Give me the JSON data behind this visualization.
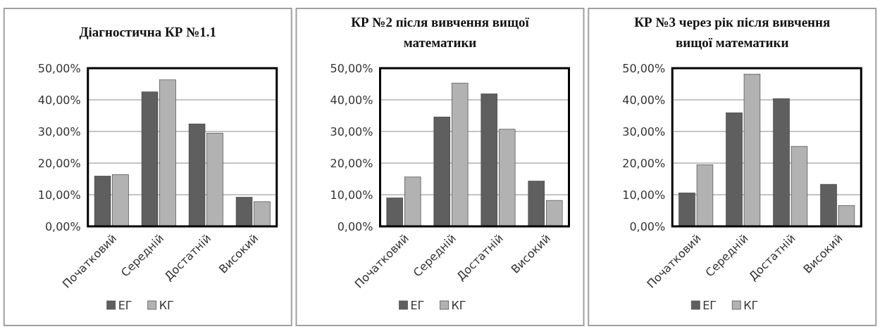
{
  "chart_data": [
    {
      "type": "bar",
      "title": "Діагностична КР №1.1",
      "categories": [
        "Початковий",
        "Середній",
        "Достатній",
        "Високий"
      ],
      "series": [
        {
          "name": "ЕГ",
          "color": "#5f5f5f",
          "values": [
            15.9,
            42.5,
            32.4,
            9.2
          ]
        },
        {
          "name": "КГ",
          "color": "#b2b2b2",
          "values": [
            16.4,
            46.3,
            29.5,
            7.8
          ]
        }
      ],
      "ylim": [
        0,
        50
      ],
      "yticks": [
        {
          "value": 0,
          "label": "0,00%"
        },
        {
          "value": 10,
          "label": "10,00%"
        },
        {
          "value": 20,
          "label": "20,00%"
        },
        {
          "value": 30,
          "label": "30,00%"
        },
        {
          "value": 40,
          "label": "40,00%"
        },
        {
          "value": 50,
          "label": "50,00%"
        }
      ],
      "grid": "y",
      "legend": "bottom"
    },
    {
      "type": "bar",
      "title": "КР №2 після вивчення вищої математики",
      "categories": [
        "Початковий",
        "Середній",
        "Достатній",
        "Високий"
      ],
      "series": [
        {
          "name": "ЕГ",
          "color": "#5f5f5f",
          "values": [
            9.0,
            34.6,
            41.9,
            14.3
          ]
        },
        {
          "name": "КГ",
          "color": "#b2b2b2",
          "values": [
            15.6,
            45.3,
            30.7,
            8.2
          ]
        }
      ],
      "ylim": [
        0,
        50
      ],
      "yticks": [
        {
          "value": 0,
          "label": "0,00%"
        },
        {
          "value": 10,
          "label": "10,00%"
        },
        {
          "value": 20,
          "label": "20,00%"
        },
        {
          "value": 30,
          "label": "30,00%"
        },
        {
          "value": 40,
          "label": "40,00%"
        },
        {
          "value": 50,
          "label": "50,00%"
        }
      ],
      "grid": "y",
      "legend": "bottom"
    },
    {
      "type": "bar",
      "title": "КР №3 через рік після вивчення вищої математики",
      "categories": [
        "Початковий",
        "Середній",
        "Достатній",
        "Високий"
      ],
      "series": [
        {
          "name": "ЕГ",
          "color": "#5f5f5f",
          "values": [
            10.6,
            35.9,
            40.4,
            13.3
          ]
        },
        {
          "name": "КГ",
          "color": "#b2b2b2",
          "values": [
            19.5,
            48.1,
            25.3,
            6.6
          ]
        }
      ],
      "ylim": [
        0,
        50
      ],
      "yticks": [
        {
          "value": 0,
          "label": "0,00%"
        },
        {
          "value": 10,
          "label": "10,00%"
        },
        {
          "value": 20,
          "label": "20,00%"
        },
        {
          "value": 30,
          "label": "30,00%"
        },
        {
          "value": 40,
          "label": "40,00%"
        },
        {
          "value": 50,
          "label": "50,00%"
        }
      ],
      "grid": "y",
      "legend": "bottom"
    }
  ]
}
